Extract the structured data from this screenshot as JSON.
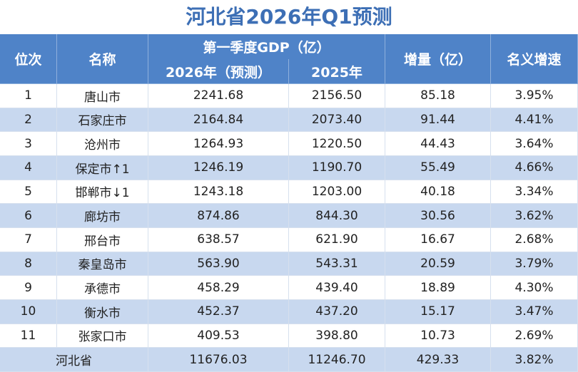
{
  "title": "河北省2026年Q1预测",
  "table": {
    "header": {
      "rank": "位次",
      "name": "名称",
      "gdp": "第一季度GDP（亿）",
      "y2026": "2026年（预测）",
      "y2025": "2025年",
      "increase": "增量（亿）",
      "growth": "名义增速"
    },
    "rows": [
      [
        "1",
        "唐山市",
        "2241.68",
        "2156.50",
        "85.18",
        "3.95%"
      ],
      [
        "2",
        "石家庄市",
        "2164.84",
        "2073.40",
        "91.44",
        "4.41%"
      ],
      [
        "3",
        "沧州市",
        "1264.93",
        "1220.50",
        "44.43",
        "3.64%"
      ],
      [
        "4",
        "保定市↑1",
        "1246.19",
        "1190.70",
        "55.49",
        "4.66%"
      ],
      [
        "5",
        "邯郸市↓1",
        "1243.18",
        "1203.00",
        "40.18",
        "3.34%"
      ],
      [
        "6",
        "廊坊市",
        "874.86",
        "844.30",
        "30.56",
        "3.62%"
      ],
      [
        "7",
        "邢台市",
        "638.57",
        "621.90",
        "16.67",
        "2.68%"
      ],
      [
        "8",
        "秦皇岛市",
        "563.90",
        "543.31",
        "20.59",
        "3.79%"
      ],
      [
        "9",
        "承德市",
        "458.29",
        "439.40",
        "18.89",
        "4.30%"
      ],
      [
        "10",
        "衡水市",
        "452.37",
        "437.20",
        "15.17",
        "3.47%"
      ],
      [
        "11",
        "张家口市",
        "409.53",
        "398.80",
        "10.73",
        "2.69%"
      ]
    ],
    "total": [
      "河北省",
      "11676.03",
      "11246.70",
      "429.33",
      "3.82%"
    ]
  }
}
